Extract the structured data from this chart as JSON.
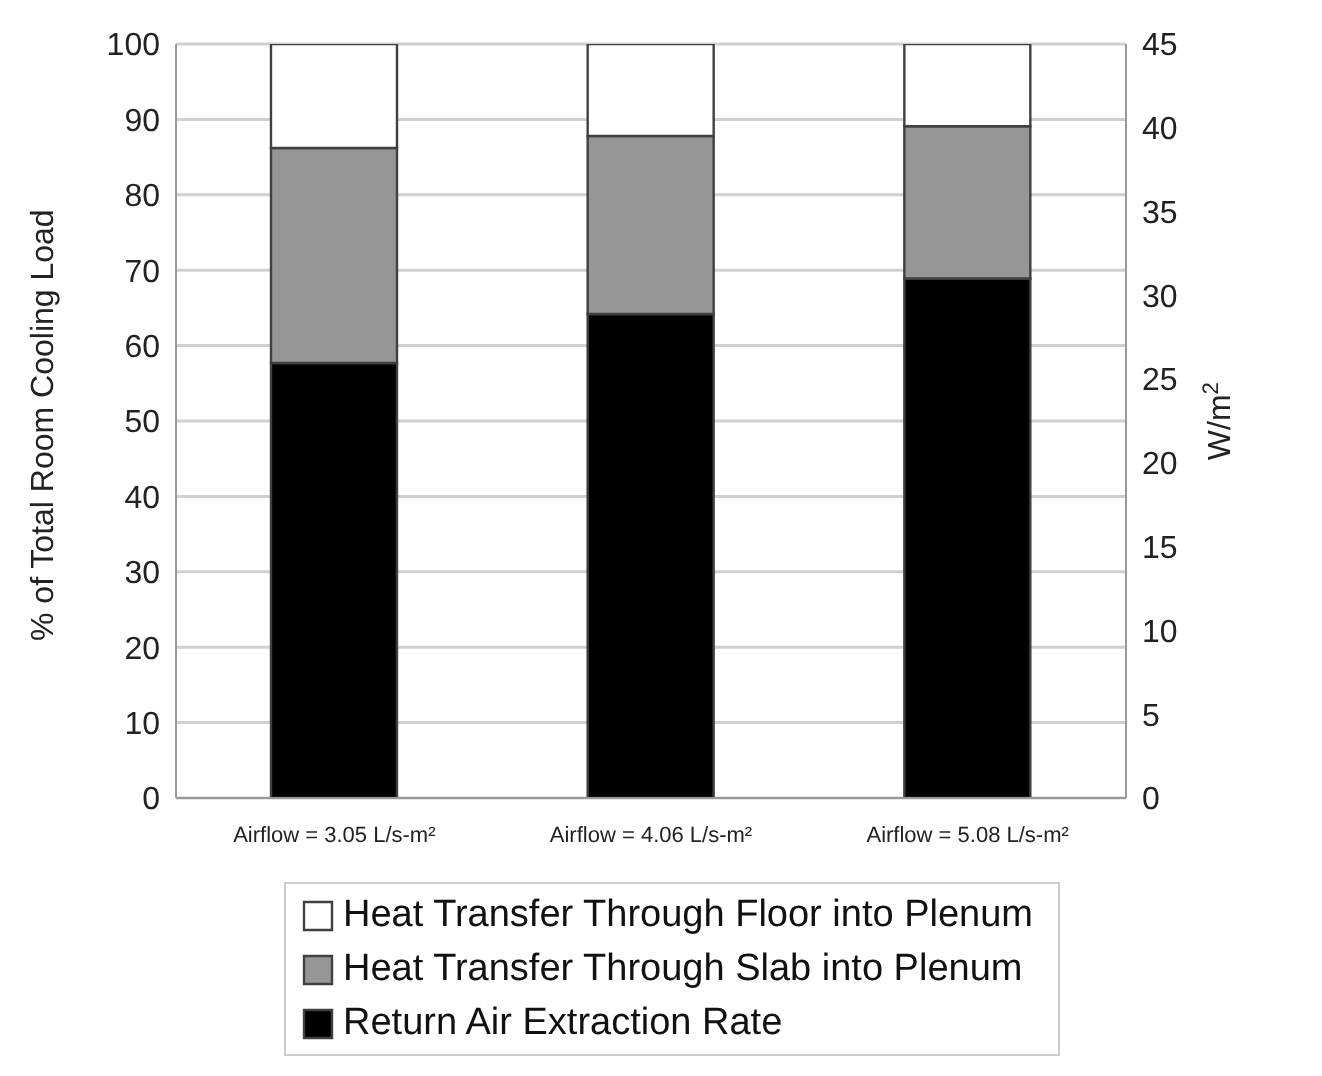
{
  "chart_data": {
    "type": "bar",
    "stacked": true,
    "ylabel": "% of Total Room Cooling Load",
    "y2label": "W/m$^{2}$",
    "categories": [
      "Airflow = 3.05 L/s-m²",
      "Airflow = 4.06 L/s-m²",
      "Airflow = 5.08 L/s-m²"
    ],
    "series": [
      {
        "name": "Return Air Extraction Rate",
        "color": "#000000",
        "values": [
          57.7,
          64.2,
          68.9
        ]
      },
      {
        "name": "Heat Transfer Through Slab into Plenum",
        "color": "#969696",
        "values": [
          28.5,
          23.6,
          20.2
        ]
      },
      {
        "name": "Heat Transfer Through Floor into Plenum",
        "color": "#ffffff",
        "values": [
          13.8,
          12.2,
          10.9
        ]
      }
    ],
    "ylim": [
      0,
      100
    ],
    "yticks": [
      0,
      10,
      20,
      30,
      40,
      50,
      60,
      70,
      80,
      90,
      100
    ],
    "y2lim": [
      0,
      45
    ],
    "y2ticks": [
      0,
      5,
      10,
      15,
      20,
      25,
      30,
      35,
      40,
      45
    ],
    "grid": "y",
    "legend": "bottom"
  }
}
